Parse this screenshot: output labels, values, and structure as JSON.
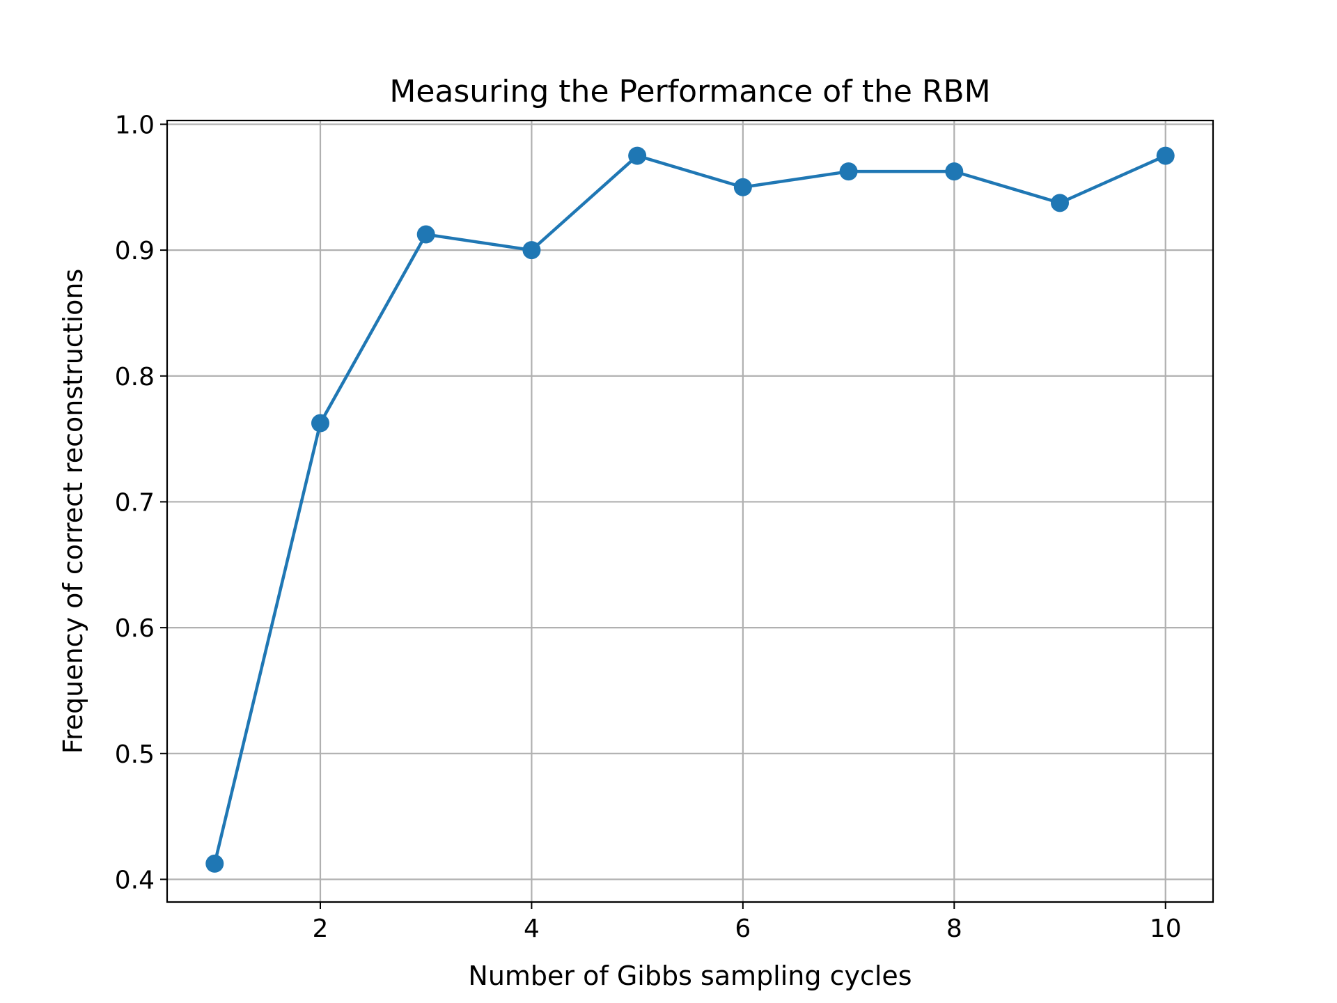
{
  "chart_data": {
    "type": "line",
    "title": "Measuring the Performance of the RBM",
    "xlabel": "Number of Gibbs sampling cycles",
    "ylabel": "Frequency of correct reconstructions",
    "xlim": [
      0.55,
      10.45
    ],
    "ylim": [
      0.382,
      1.003
    ],
    "xticks": [
      2,
      4,
      6,
      8,
      10
    ],
    "xtick_labels": [
      "2",
      "4",
      "6",
      "8",
      "10"
    ],
    "yticks": [
      0.4,
      0.5,
      0.6,
      0.7,
      0.8,
      0.9,
      1.0
    ],
    "ytick_labels": [
      "0.4",
      "0.5",
      "0.6",
      "0.7",
      "0.8",
      "0.9",
      "1.0"
    ],
    "grid": true,
    "series": [
      {
        "color": "#1f77b4",
        "marker": "circle",
        "x": [
          1,
          2,
          3,
          4,
          5,
          6,
          7,
          8,
          9,
          10
        ],
        "y": [
          0.4125,
          0.7625,
          0.9125,
          0.9,
          0.975,
          0.95,
          0.9625,
          0.9625,
          0.9375,
          0.975
        ]
      }
    ]
  }
}
